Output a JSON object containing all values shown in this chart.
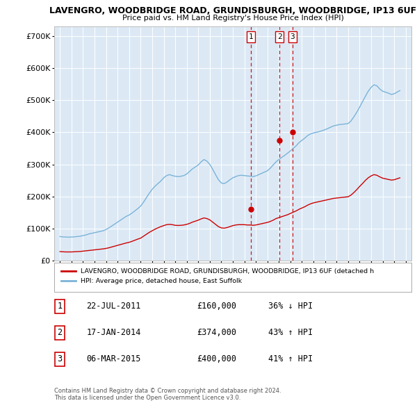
{
  "title": "LAVENGRO, WOODBRIDGE ROAD, GRUNDISBURGH, WOODBRIDGE, IP13 6UF",
  "subtitle": "Price paid vs. HM Land Registry's House Price Index (HPI)",
  "plot_bg_color": "#dce9f5",
  "ylim": [
    0,
    730000
  ],
  "yticks": [
    0,
    100000,
    200000,
    300000,
    400000,
    500000,
    600000,
    700000
  ],
  "ytick_labels": [
    "£0",
    "£100K",
    "£200K",
    "£300K",
    "£400K",
    "£500K",
    "£600K",
    "£700K"
  ],
  "legend_label_red": "LAVENGRO, WOODBRIDGE ROAD, GRUNDISBURGH, WOODBRIDGE, IP13 6UF (detached h",
  "legend_label_blue": "HPI: Average price, detached house, East Suffolk",
  "footer_line1": "Contains HM Land Registry data © Crown copyright and database right 2024.",
  "footer_line2": "This data is licensed under the Open Government Licence v3.0.",
  "sale_points": [
    {
      "label": "1",
      "date_str": "22-JUL-2011",
      "price": 160000,
      "hpi_pct": "36% ↓ HPI",
      "x_year": 2011.55
    },
    {
      "label": "2",
      "date_str": "17-JAN-2014",
      "price": 374000,
      "hpi_pct": "43% ↑ HPI",
      "x_year": 2014.05
    },
    {
      "label": "3",
      "date_str": "06-MAR-2015",
      "price": 400000,
      "hpi_pct": "41% ↑ HPI",
      "x_year": 2015.18
    }
  ],
  "hpi_data": {
    "years": [
      1995.0,
      1995.25,
      1995.5,
      1995.75,
      1996.0,
      1996.25,
      1996.5,
      1996.75,
      1997.0,
      1997.25,
      1997.5,
      1997.75,
      1998.0,
      1998.25,
      1998.5,
      1998.75,
      1999.0,
      1999.25,
      1999.5,
      1999.75,
      2000.0,
      2000.25,
      2000.5,
      2000.75,
      2001.0,
      2001.25,
      2001.5,
      2001.75,
      2002.0,
      2002.25,
      2002.5,
      2002.75,
      2003.0,
      2003.25,
      2003.5,
      2003.75,
      2004.0,
      2004.25,
      2004.5,
      2004.75,
      2005.0,
      2005.25,
      2005.5,
      2005.75,
      2006.0,
      2006.25,
      2006.5,
      2006.75,
      2007.0,
      2007.25,
      2007.5,
      2007.75,
      2008.0,
      2008.25,
      2008.5,
      2008.75,
      2009.0,
      2009.25,
      2009.5,
      2009.75,
      2010.0,
      2010.25,
      2010.5,
      2010.75,
      2011.0,
      2011.25,
      2011.5,
      2011.75,
      2012.0,
      2012.25,
      2012.5,
      2012.75,
      2013.0,
      2013.25,
      2013.5,
      2013.75,
      2014.0,
      2014.25,
      2014.5,
      2014.75,
      2015.0,
      2015.25,
      2015.5,
      2015.75,
      2016.0,
      2016.25,
      2016.5,
      2016.75,
      2017.0,
      2017.25,
      2017.5,
      2017.75,
      2018.0,
      2018.25,
      2018.5,
      2018.75,
      2019.0,
      2019.25,
      2019.5,
      2019.75,
      2020.0,
      2020.25,
      2020.5,
      2020.75,
      2021.0,
      2021.25,
      2021.5,
      2021.75,
      2022.0,
      2022.25,
      2022.5,
      2022.75,
      2023.0,
      2023.25,
      2023.5,
      2023.75,
      2024.0,
      2024.25,
      2024.5
    ],
    "values": [
      75000,
      74000,
      73500,
      73000,
      73500,
      74000,
      75000,
      76000,
      78000,
      80000,
      83000,
      85000,
      87000,
      89000,
      91000,
      93000,
      97000,
      102000,
      108000,
      114000,
      120000,
      126000,
      132000,
      138000,
      142000,
      148000,
      155000,
      162000,
      170000,
      182000,
      196000,
      210000,
      222000,
      232000,
      240000,
      248000,
      258000,
      265000,
      268000,
      265000,
      263000,
      262000,
      263000,
      265000,
      270000,
      278000,
      286000,
      292000,
      298000,
      308000,
      315000,
      310000,
      300000,
      285000,
      268000,
      252000,
      242000,
      240000,
      245000,
      252000,
      258000,
      262000,
      265000,
      266000,
      265000,
      264000,
      263000,
      262000,
      264000,
      268000,
      272000,
      276000,
      280000,
      288000,
      298000,
      308000,
      315000,
      322000,
      328000,
      335000,
      342000,
      350000,
      358000,
      368000,
      375000,
      382000,
      390000,
      395000,
      398000,
      400000,
      402000,
      405000,
      408000,
      412000,
      416000,
      420000,
      422000,
      424000,
      425000,
      426000,
      427000,
      435000,
      448000,
      462000,
      478000,
      495000,
      512000,
      528000,
      540000,
      548000,
      545000,
      535000,
      528000,
      525000,
      522000,
      518000,
      520000,
      525000,
      530000
    ]
  },
  "red_data": {
    "years": [
      1995.0,
      1995.25,
      1995.5,
      1995.75,
      1996.0,
      1996.25,
      1996.5,
      1996.75,
      1997.0,
      1997.25,
      1997.5,
      1997.75,
      1998.0,
      1998.25,
      1998.5,
      1998.75,
      1999.0,
      1999.25,
      1999.5,
      1999.75,
      2000.0,
      2000.25,
      2000.5,
      2000.75,
      2001.0,
      2001.25,
      2001.5,
      2001.75,
      2002.0,
      2002.25,
      2002.5,
      2002.75,
      2003.0,
      2003.25,
      2003.5,
      2003.75,
      2004.0,
      2004.25,
      2004.5,
      2004.75,
      2005.0,
      2005.25,
      2005.5,
      2005.75,
      2006.0,
      2006.25,
      2006.5,
      2006.75,
      2007.0,
      2007.25,
      2007.5,
      2007.75,
      2008.0,
      2008.25,
      2008.5,
      2008.75,
      2009.0,
      2009.25,
      2009.5,
      2009.75,
      2010.0,
      2010.25,
      2010.5,
      2010.75,
      2011.0,
      2011.25,
      2011.5,
      2011.75,
      2012.0,
      2012.25,
      2012.5,
      2012.75,
      2013.0,
      2013.25,
      2013.5,
      2013.75,
      2014.0,
      2014.25,
      2014.5,
      2014.75,
      2015.0,
      2015.25,
      2015.5,
      2015.75,
      2016.0,
      2016.25,
      2016.5,
      2016.75,
      2017.0,
      2017.25,
      2017.5,
      2017.75,
      2018.0,
      2018.25,
      2018.5,
      2018.75,
      2019.0,
      2019.25,
      2019.5,
      2019.75,
      2020.0,
      2020.25,
      2020.5,
      2020.75,
      2021.0,
      2021.25,
      2021.5,
      2021.75,
      2022.0,
      2022.25,
      2022.5,
      2022.75,
      2023.0,
      2023.25,
      2023.5,
      2023.75,
      2024.0,
      2024.25,
      2024.5
    ],
    "values": [
      28000,
      27500,
      27000,
      27000,
      27000,
      27500,
      28000,
      28500,
      29500,
      30500,
      31500,
      32500,
      33500,
      34500,
      35500,
      36500,
      38000,
      40000,
      42500,
      45000,
      47500,
      50000,
      52500,
      55000,
      57000,
      60000,
      63500,
      67000,
      70000,
      76000,
      82000,
      88000,
      93000,
      98000,
      102000,
      106000,
      109000,
      112000,
      113000,
      112000,
      110000,
      109500,
      110000,
      111000,
      113000,
      116000,
      120000,
      123000,
      126000,
      130000,
      133000,
      131000,
      127000,
      120000,
      113000,
      106000,
      102000,
      101000,
      103000,
      106000,
      109000,
      111000,
      112000,
      112000,
      112000,
      111000,
      111000,
      110000,
      111000,
      113000,
      115000,
      117000,
      119000,
      122000,
      126000,
      131000,
      134000,
      137000,
      140000,
      143000,
      147000,
      151000,
      155000,
      160000,
      164000,
      168000,
      173000,
      177000,
      180000,
      182000,
      184000,
      186000,
      188000,
      190000,
      192000,
      194000,
      195000,
      196000,
      197000,
      198000,
      199000,
      204000,
      212000,
      221000,
      231000,
      240000,
      250000,
      258000,
      264000,
      268000,
      266000,
      261000,
      257000,
      255000,
      253000,
      251000,
      252000,
      255000,
      258000
    ]
  },
  "xlim": [
    1994.5,
    2025.5
  ],
  "xticks": [
    1995,
    1996,
    1997,
    1998,
    1999,
    2000,
    2001,
    2002,
    2003,
    2004,
    2005,
    2006,
    2007,
    2008,
    2009,
    2010,
    2011,
    2012,
    2013,
    2014,
    2015,
    2016,
    2017,
    2018,
    2019,
    2020,
    2021,
    2022,
    2023,
    2024,
    2025
  ]
}
